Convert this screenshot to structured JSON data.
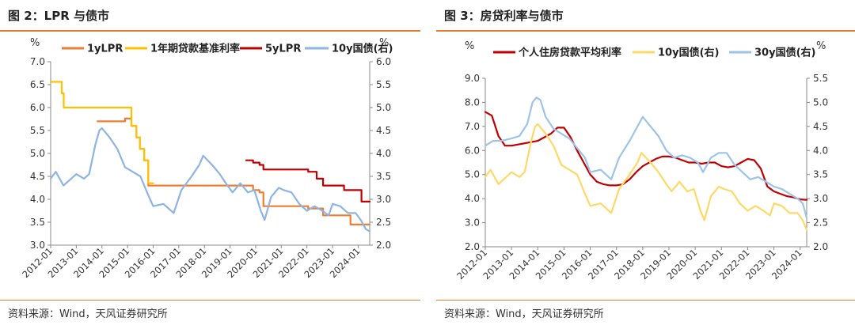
{
  "charts": [
    {
      "title": "图 2：LPR 与债市",
      "source": "资料来源：Wind，天风证券研究所",
      "chart_data": {
        "type": "line",
        "y_left_unit": "%",
        "y_right_unit": "%",
        "ylim_left": [
          3.0,
          7.0
        ],
        "ylim_right": [
          2.0,
          6.0
        ],
        "yticks_left": [
          "7.0",
          "6.5",
          "6.0",
          "5.5",
          "5.0",
          "4.5",
          "4.0",
          "3.5",
          "3.0"
        ],
        "yticks_right": [
          "6.0",
          "5.5",
          "5.0",
          "4.5",
          "4.0",
          "3.5",
          "3.0",
          "2.5",
          "2.0"
        ],
        "xlim": [
          2012.0,
          2024.45
        ],
        "xticks": [
          "2012-01",
          "2013-01",
          "2014-01",
          "2015-01",
          "2016-01",
          "2017-01",
          "2018-01",
          "2019-01",
          "2020-01",
          "2021-01",
          "2022-01",
          "2023-01",
          "2024-01"
        ],
        "legend_position": "top",
        "series": [
          {
            "name": "1yLPR",
            "axis": "left",
            "color": "#ed7d31",
            "step": true,
            "x": [
              2013.83,
              2014.9,
              2015.15,
              2015.35,
              2015.48,
              2015.65,
              2015.81,
              2019.7,
              2019.9,
              2020.15,
              2020.3,
              2021.95,
              2022.05,
              2022.63,
              2023.45,
              2023.7,
              2024.45
            ],
            "y": [
              5.7,
              5.76,
              5.6,
              5.35,
              5.1,
              4.85,
              4.3,
              4.3,
              4.2,
              4.15,
              3.85,
              3.85,
              3.8,
              3.65,
              3.65,
              3.45,
              3.45
            ]
          },
          {
            "name": "1年期贷款基准利率",
            "axis": "left",
            "color": "#ffc000",
            "step": true,
            "x": [
              2012.0,
              2012.43,
              2012.51,
              2014.9,
              2015.15,
              2015.35,
              2015.48,
              2015.65,
              2015.81,
              2016.0
            ],
            "y": [
              6.56,
              6.31,
              6.0,
              6.0,
              5.6,
              5.35,
              5.1,
              4.85,
              4.35,
              4.35
            ]
          },
          {
            "name": "5yLPR",
            "axis": "left",
            "color": "#c00000",
            "step": true,
            "x": [
              2019.63,
              2019.9,
              2020.15,
              2020.3,
              2022.05,
              2022.38,
              2022.63,
              2023.45,
              2024.13,
              2024.45
            ],
            "y": [
              4.85,
              4.8,
              4.75,
              4.65,
              4.6,
              4.45,
              4.3,
              4.2,
              3.95,
              3.95
            ]
          },
          {
            "name": "10y国债(右)",
            "axis": "right",
            "color": "#8db4e2",
            "step": false,
            "x": [
              2012.0,
              2012.2,
              2012.5,
              2012.8,
              2013.0,
              2013.3,
              2013.5,
              2013.75,
              2013.9,
              2014.0,
              2014.3,
              2014.6,
              2014.9,
              2015.2,
              2015.5,
              2015.8,
              2016.0,
              2016.4,
              2016.8,
              2017.1,
              2017.5,
              2017.8,
              2017.95,
              2018.3,
              2018.6,
              2018.9,
              2019.1,
              2019.4,
              2019.7,
              2019.95,
              2020.2,
              2020.35,
              2020.6,
              2020.9,
              2021.1,
              2021.4,
              2021.7,
              2022.0,
              2022.3,
              2022.6,
              2022.85,
              2023.0,
              2023.3,
              2023.6,
              2023.9,
              2024.1,
              2024.3,
              2024.45
            ],
            "y": [
              3.45,
              3.6,
              3.3,
              3.45,
              3.55,
              3.45,
              3.55,
              4.2,
              4.5,
              4.55,
              4.35,
              4.1,
              3.7,
              3.6,
              3.5,
              3.1,
              2.85,
              2.9,
              2.7,
              3.2,
              3.5,
              3.75,
              3.95,
              3.75,
              3.55,
              3.3,
              3.15,
              3.35,
              3.15,
              3.2,
              2.75,
              2.55,
              3.05,
              3.25,
              3.2,
              3.15,
              2.9,
              2.75,
              2.85,
              2.75,
              2.65,
              2.9,
              2.85,
              2.7,
              2.7,
              2.55,
              2.35,
              2.3
            ]
          }
        ]
      }
    },
    {
      "title": "图 3：房贷利率与债市",
      "source": "资料来源：Wind，天风证券研究所",
      "chart_data": {
        "type": "line",
        "y_left_unit": "%",
        "y_right_unit": "%",
        "ylim_left": [
          2.0,
          9.0
        ],
        "ylim_right": [
          2.0,
          5.5
        ],
        "yticks_left": [
          "9.0",
          "8.0",
          "7.0",
          "6.0",
          "5.0",
          "4.0",
          "3.0",
          "2.0"
        ],
        "yticks_right": [
          "5.5",
          "5.0",
          "4.5",
          "4.0",
          "3.5",
          "3.0",
          "2.5",
          "2.0"
        ],
        "xlim": [
          2012.0,
          2024.25
        ],
        "xticks": [
          "2012-01",
          "2013-01",
          "2014-01",
          "2015-01",
          "2016-01",
          "2017-01",
          "2018-01",
          "2019-01",
          "2020-01",
          "2021-01",
          "2022-01",
          "2023-01",
          "2024-01"
        ],
        "legend_position": "top",
        "series": [
          {
            "name": "个人住房贷款平均利率",
            "axis": "left",
            "color": "#c00000",
            "step": false,
            "x": [
              2012.0,
              2012.25,
              2012.5,
              2012.75,
              2013.0,
              2013.5,
              2014.0,
              2014.5,
              2014.75,
              2015.0,
              2015.25,
              2015.5,
              2015.75,
              2016.0,
              2016.25,
              2016.5,
              2016.75,
              2017.0,
              2017.25,
              2017.5,
              2017.75,
              2018.0,
              2018.25,
              2018.5,
              2018.75,
              2019.0,
              2019.25,
              2019.5,
              2019.75,
              2020.0,
              2020.25,
              2020.5,
              2020.75,
              2021.0,
              2021.25,
              2021.5,
              2021.75,
              2022.0,
              2022.25,
              2022.5,
              2022.75,
              2023.0,
              2023.25,
              2023.5,
              2023.75,
              2024.0,
              2024.25
            ],
            "y": [
              7.6,
              7.45,
              6.6,
              6.2,
              6.2,
              6.3,
              6.4,
              6.7,
              6.95,
              6.95,
              6.55,
              6.0,
              5.5,
              5.0,
              4.7,
              4.6,
              4.55,
              4.55,
              4.6,
              4.8,
              5.1,
              5.35,
              5.5,
              5.65,
              5.75,
              5.75,
              5.7,
              5.6,
              5.5,
              5.5,
              5.45,
              5.5,
              5.5,
              5.35,
              5.3,
              5.35,
              5.5,
              5.65,
              5.6,
              5.25,
              4.5,
              4.3,
              4.2,
              4.1,
              4.05,
              3.97,
              3.95
            ]
          },
          {
            "name": "10y国债(右)",
            "axis": "right",
            "color": "#ffd966",
            "step": false,
            "x": [
              2012.0,
              2012.2,
              2012.5,
              2012.8,
              2013.0,
              2013.3,
              2013.5,
              2013.75,
              2013.9,
              2014.0,
              2014.3,
              2014.6,
              2014.9,
              2015.2,
              2015.5,
              2015.8,
              2016.0,
              2016.4,
              2016.8,
              2017.1,
              2017.5,
              2017.8,
              2017.95,
              2018.3,
              2018.6,
              2018.9,
              2019.1,
              2019.4,
              2019.7,
              2019.95,
              2020.2,
              2020.35,
              2020.6,
              2020.9,
              2021.1,
              2021.4,
              2021.7,
              2022.0,
              2022.3,
              2022.6,
              2022.85,
              2023.0,
              2023.3,
              2023.6,
              2023.9,
              2024.1,
              2024.25
            ],
            "y": [
              3.45,
              3.6,
              3.3,
              3.45,
              3.55,
              3.45,
              3.55,
              4.2,
              4.5,
              4.55,
              4.35,
              4.1,
              3.7,
              3.6,
              3.5,
              3.1,
              2.85,
              2.9,
              2.7,
              3.2,
              3.5,
              3.75,
              3.95,
              3.75,
              3.55,
              3.3,
              3.15,
              3.35,
              3.15,
              3.2,
              2.75,
              2.55,
              3.05,
              3.25,
              3.2,
              3.15,
              2.9,
              2.75,
              2.85,
              2.75,
              2.65,
              2.9,
              2.85,
              2.7,
              2.7,
              2.55,
              2.35
            ]
          },
          {
            "name": "30y国债(右)",
            "axis": "right",
            "color": "#9dc3e6",
            "step": false,
            "x": [
              2012.0,
              2012.3,
              2012.6,
              2013.0,
              2013.3,
              2013.6,
              2013.8,
              2013.95,
              2014.1,
              2014.3,
              2014.6,
              2014.9,
              2015.2,
              2015.5,
              2015.8,
              2016.0,
              2016.4,
              2016.8,
              2017.1,
              2017.5,
              2017.8,
              2018.0,
              2018.3,
              2018.6,
              2018.9,
              2019.2,
              2019.5,
              2019.8,
              2020.1,
              2020.3,
              2020.6,
              2020.9,
              2021.2,
              2021.5,
              2021.8,
              2022.1,
              2022.4,
              2022.7,
              2023.0,
              2023.3,
              2023.6,
              2023.9,
              2024.1,
              2024.25
            ],
            "y": [
              4.1,
              4.2,
              4.2,
              4.25,
              4.3,
              4.55,
              5.0,
              5.1,
              5.05,
              4.7,
              4.45,
              4.35,
              4.25,
              4.05,
              3.85,
              3.55,
              3.6,
              3.4,
              3.85,
              4.2,
              4.5,
              4.7,
              4.5,
              4.3,
              4.0,
              3.85,
              3.9,
              3.85,
              3.75,
              3.55,
              3.85,
              3.95,
              3.95,
              3.7,
              3.55,
              3.4,
              3.45,
              3.35,
              3.25,
              3.2,
              3.1,
              3.0,
              2.9,
              2.6
            ]
          }
        ]
      }
    }
  ]
}
